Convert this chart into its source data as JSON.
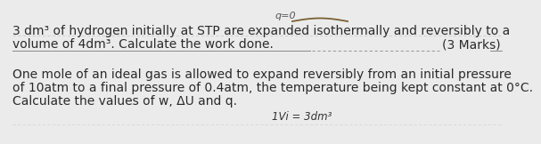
{
  "background_color": "#ebebeb",
  "top_text": "q=0",
  "line1": "3 dm³ of hydrogen initially at STP are expanded isothermally and reversibly to a",
  "line2": "volume of 4dm³. Calculate the work done.",
  "marks": "(3 Marks)",
  "line3": "One mole of an ideal gas is allowed to expand reversibly from an initial pressure",
  "line4": "of 10atm to a final pressure of 0.4atm, the temperature being kept constant at 0°C.",
  "line5": "Calculate the values of w, ΔU and q.",
  "bottom_fragment": "1Vi = 3dm³",
  "font_size_main": 10.0,
  "text_color": "#2a2a2a",
  "underline_color": "#888888",
  "curve_color": "#7a6030"
}
